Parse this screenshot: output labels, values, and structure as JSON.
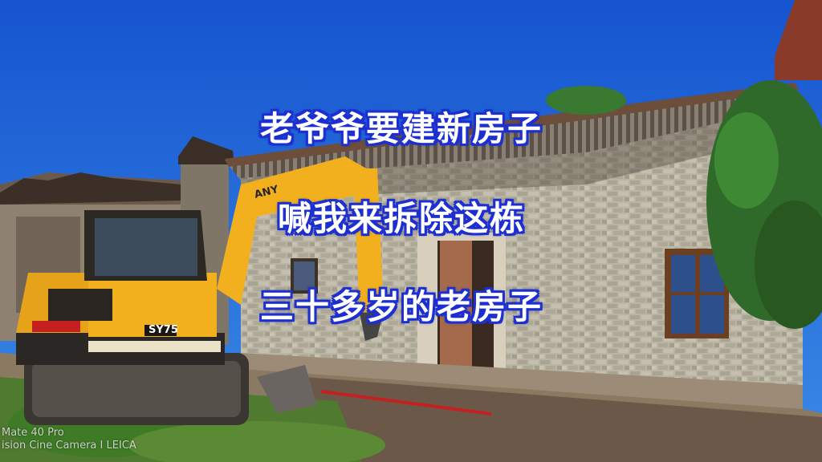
{
  "captions": {
    "line1": "老爷爷要建新房子",
    "line2": "喊我来拆除这栋",
    "line3": "三十多岁的老房子"
  },
  "excavator": {
    "model_label": "SY75",
    "boom_label": "ANY"
  },
  "watermark": {
    "line1": "Mate 40 Pro",
    "line2": "ision Cine Camera I LEICA"
  },
  "colors": {
    "sky": "#1f5fd6",
    "caption_text": "#ffffff",
    "caption_outline": "#1d2fd0",
    "excavator_yellow": "#f2b01e",
    "wall_grey": "#b8b3a3"
  }
}
